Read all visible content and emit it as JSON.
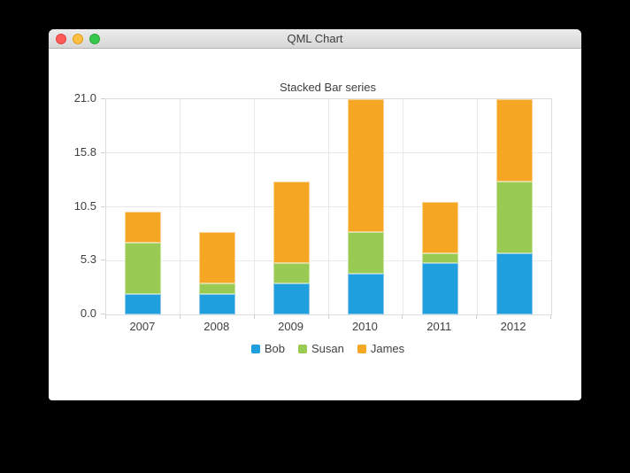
{
  "window": {
    "title": "QML Chart",
    "controls": {
      "close": "close-window",
      "minimize": "minimize-window",
      "zoom": "zoom-window"
    }
  },
  "chart_data": {
    "type": "bar",
    "stacked": true,
    "title": "Stacked Bar series",
    "categories": [
      "2007",
      "2008",
      "2009",
      "2010",
      "2011",
      "2012"
    ],
    "series": [
      {
        "name": "Bob",
        "color": "#209fdf",
        "border_color": "#8ecaec",
        "values": [
          2,
          2,
          3,
          4,
          5,
          6
        ]
      },
      {
        "name": "Susan",
        "color": "#99ca53",
        "border_color": "#c8e3a2",
        "values": [
          5,
          1,
          2,
          4,
          1,
          7
        ]
      },
      {
        "name": "James",
        "color": "#f5a623",
        "border_color": "#fad294",
        "values": [
          3,
          5,
          8,
          13,
          5,
          8
        ]
      }
    ],
    "totals": [
      10,
      8,
      13,
      21,
      11,
      21
    ],
    "ylim": [
      0,
      21
    ],
    "y_tick_labels_top_to_bottom": [
      "21.0",
      "15.8",
      "10.5",
      "5.3",
      "0.0"
    ],
    "grid": true,
    "legend_position": "bottom",
    "colors": {
      "gridline": "#e9e9e9",
      "axis_tick": "#cfcfcf",
      "text": "#404040",
      "plot_background": "#ffffff"
    }
  }
}
